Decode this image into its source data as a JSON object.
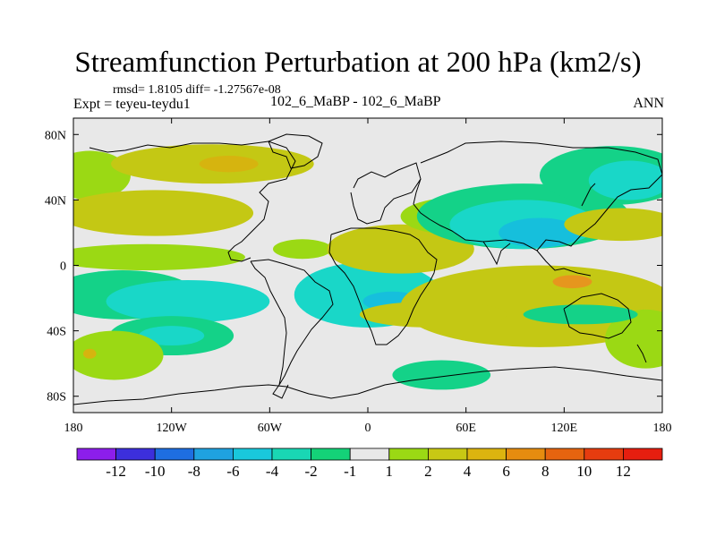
{
  "chart_data": {
    "type": "heatmap",
    "title": "Streamfunction Perturbation at 200 hPa (km2/s)",
    "stats_label": "rmsd= 1.8105 diff= -1.27567e-08",
    "expt_label": "Expt = teyeu-teydu1",
    "case_label": "102_6_MaBP - 102_6_MaBP",
    "season": "ANN",
    "x_ticks": [
      "180",
      "120W",
      "60W",
      "0",
      "60E",
      "120E",
      "180"
    ],
    "x_values": [
      -180,
      -120,
      -60,
      0,
      60,
      120,
      180
    ],
    "y_ticks": [
      "80N",
      "40N",
      "0",
      "40S",
      "80S"
    ],
    "y_values": [
      80,
      40,
      0,
      -40,
      -80
    ],
    "xlim": [
      -180,
      180
    ],
    "ylim": [
      -90,
      90
    ],
    "colorbar": {
      "labels": [
        "-12",
        "-10",
        "-8",
        "-6",
        "-4",
        "-2",
        "-1",
        "1",
        "2",
        "4",
        "6",
        "8",
        "10",
        "12"
      ],
      "colors": [
        "#8c1eeb",
        "#3c2fdc",
        "#1e6ee1",
        "#1fa2e0",
        "#19c8dc",
        "#19d7b4",
        "#14d278",
        "#e8e8e8",
        "#9bd914",
        "#c8c814",
        "#dcb40f",
        "#e68c0f",
        "#e6640f",
        "#e63c0f",
        "#e61e0f"
      ]
    },
    "regions": [
      {
        "level": "1 to 2",
        "lon": -170,
        "lat": 55,
        "rx": 25,
        "ry": 15
      },
      {
        "level": "2 to 4",
        "lon": -95,
        "lat": 62,
        "rx": 62,
        "ry": 12
      },
      {
        "level": "4 to 6",
        "lon": -85,
        "lat": 62,
        "rx": 18,
        "ry": 5
      },
      {
        "level": "2 to 4",
        "lon": -130,
        "lat": 32,
        "rx": 60,
        "ry": 14
      },
      {
        "level": "1 to 2",
        "lon": -135,
        "lat": 5,
        "rx": 60,
        "ry": 8
      },
      {
        "level": "-2 to -1",
        "lon": -150,
        "lat": -18,
        "rx": 45,
        "ry": 15
      },
      {
        "level": "-4 to -2",
        "lon": -110,
        "lat": -22,
        "rx": 50,
        "ry": 13
      },
      {
        "level": "-4 to -2",
        "lon": 0,
        "lat": -18,
        "rx": 45,
        "ry": 20
      },
      {
        "level": "-6 to -4",
        "lon": 15,
        "lat": -22,
        "rx": 18,
        "ry": 6
      },
      {
        "level": "-2 to -1",
        "lon": -120,
        "lat": -43,
        "rx": 38,
        "ry": 12
      },
      {
        "level": "-4 to -2",
        "lon": -120,
        "lat": -43,
        "rx": 20,
        "ry": 6
      },
      {
        "level": "1 to 2",
        "lon": -155,
        "lat": -55,
        "rx": 30,
        "ry": 15
      },
      {
        "level": "4 to 6",
        "lon": -170,
        "lat": -54,
        "rx": 4,
        "ry": 3
      },
      {
        "level": "1 to 2",
        "lon": -40,
        "lat": 10,
        "rx": 18,
        "ry": 6
      },
      {
        "level": "2 to 4",
        "lon": 20,
        "lat": 10,
        "rx": 45,
        "ry": 15
      },
      {
        "level": "1 to 2",
        "lon": 60,
        "lat": 30,
        "rx": 40,
        "ry": 12
      },
      {
        "level": "-1 to 1",
        "lon": 60,
        "lat": 30,
        "rx": 18,
        "ry": 5
      },
      {
        "level": "-2 to -1",
        "lon": 95,
        "lat": 30,
        "rx": 65,
        "ry": 20
      },
      {
        "level": "-4 to -2",
        "lon": 95,
        "lat": 25,
        "rx": 45,
        "ry": 15
      },
      {
        "level": "-6 to -4",
        "lon": 105,
        "lat": 20,
        "rx": 25,
        "ry": 9
      },
      {
        "level": "-2 to -1",
        "lon": 150,
        "lat": 55,
        "rx": 45,
        "ry": 18
      },
      {
        "level": "-4 to -2",
        "lon": 160,
        "lat": 52,
        "rx": 25,
        "ry": 12
      },
      {
        "level": "2 to 4",
        "lon": 155,
        "lat": 25,
        "rx": 35,
        "ry": 10
      },
      {
        "level": "2 to 4",
        "lon": 105,
        "lat": -25,
        "rx": 85,
        "ry": 25
      },
      {
        "level": "6 to 8",
        "lon": 125,
        "lat": -10,
        "rx": 12,
        "ry": 4
      },
      {
        "level": "2 to 4",
        "lon": 40,
        "lat": -30,
        "rx": 45,
        "ry": 8
      },
      {
        "level": "1 to 2",
        "lon": 170,
        "lat": -45,
        "rx": 25,
        "ry": 18
      },
      {
        "level": "-2 to -1",
        "lon": 45,
        "lat": -67,
        "rx": 30,
        "ry": 9
      },
      {
        "level": "-2 to -1",
        "lon": 130,
        "lat": -30,
        "rx": 35,
        "ry": 6
      }
    ]
  }
}
